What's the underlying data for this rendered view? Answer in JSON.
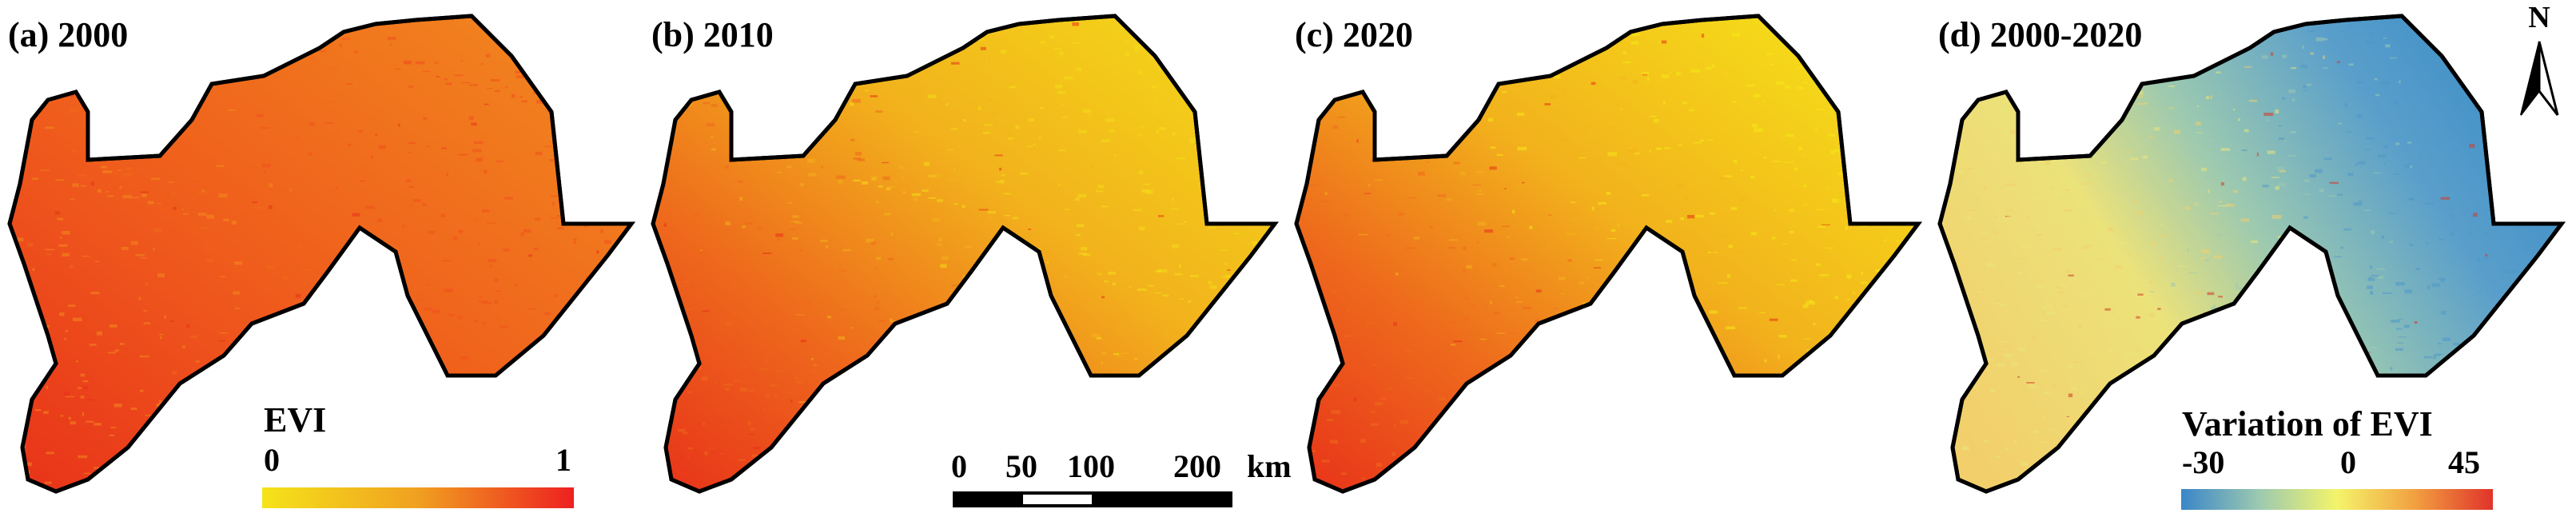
{
  "panels": [
    {
      "label": "(a) 2000"
    },
    {
      "label": "(b) 2010"
    },
    {
      "label": "(c) 2020"
    },
    {
      "label": "(d) 2000-2020"
    }
  ],
  "evi_legend": {
    "title": "EVI",
    "min": "0",
    "max": "1",
    "colors": [
      "#f5e31a",
      "#f0a020",
      "#ee2020"
    ]
  },
  "variation_legend": {
    "title": "Variation of EVI",
    "min": "-30",
    "mid": "0",
    "max": "45",
    "colors": [
      "#3a86c8",
      "#f4f46a",
      "#e0332b"
    ]
  },
  "scale_bar": {
    "ticks": [
      "0",
      "50",
      "100",
      "200"
    ],
    "unit": "km"
  },
  "north_arrow": {
    "label": "N"
  },
  "colors": {
    "evi_2000": [
      "#f0501c",
      "#ee6a1c",
      "#f28b1e",
      "#e8321a"
    ],
    "evi_2010": [
      "#f4dd18",
      "#f2b21c",
      "#ee6a1c",
      "#e8321a"
    ],
    "evi_2020": [
      "#f6e818",
      "#f2b21c",
      "#ee6a1c",
      "#e8321a"
    ],
    "variation": [
      "#f2cf6a",
      "#e9e67a",
      "#9cc9b0",
      "#4f98c9",
      "#d23a2a"
    ]
  }
}
